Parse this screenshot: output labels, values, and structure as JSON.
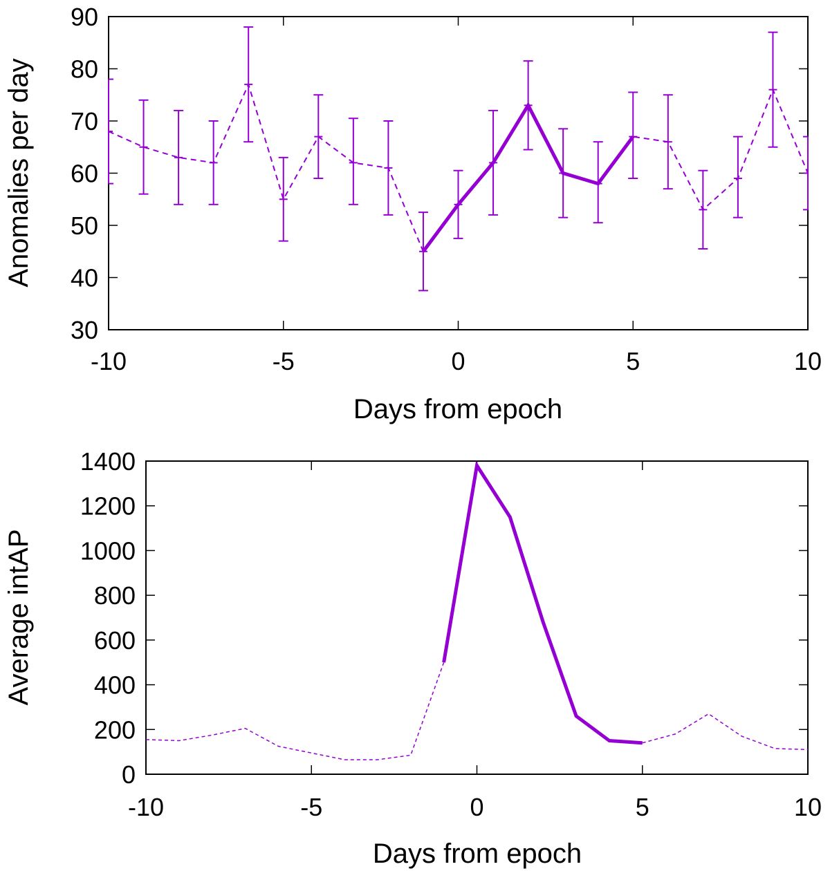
{
  "chart_data": [
    {
      "type": "line",
      "xlabel": "Days from epoch",
      "ylabel": "Anomalies per day",
      "xlim": [
        -10,
        10
      ],
      "ylim": [
        30,
        90
      ],
      "xticks": [
        -10,
        -5,
        0,
        5,
        10
      ],
      "yticks": [
        30,
        40,
        50,
        60,
        70,
        80,
        90
      ],
      "grid": false,
      "color": "#9400d3",
      "series": [
        {
          "name": "dashed",
          "style": "dashed",
          "x": [
            -10,
            -9,
            -8,
            -7,
            -6,
            -5,
            -4,
            -3,
            -2,
            -1,
            0,
            1,
            2,
            3,
            4,
            5,
            6,
            7,
            8,
            9,
            10
          ],
          "values": [
            68,
            65,
            63,
            62,
            77,
            55,
            67,
            62,
            61,
            45,
            54,
            62,
            73,
            60,
            58,
            67,
            66,
            53,
            59,
            76,
            60
          ],
          "err_low": [
            58,
            56,
            54,
            54,
            66,
            47,
            59,
            54,
            52,
            37.5,
            47.5,
            52,
            64.5,
            51.5,
            50.5,
            59,
            57,
            45.5,
            51.5,
            65,
            53
          ],
          "err_high": [
            78,
            74,
            72,
            70,
            88,
            63,
            75,
            70.5,
            70,
            52.5,
            60.5,
            72,
            81.5,
            68.5,
            66,
            75.5,
            75,
            60.5,
            67,
            87,
            67
          ]
        },
        {
          "name": "solid",
          "style": "solid",
          "x": [
            -1,
            0,
            1,
            2,
            3,
            4,
            5
          ],
          "values": [
            45,
            54,
            62,
            73,
            60,
            58,
            67
          ]
        }
      ]
    },
    {
      "type": "line",
      "xlabel": "Days from epoch",
      "ylabel": "Average intAP",
      "xlim": [
        -10,
        10
      ],
      "ylim": [
        0,
        1400
      ],
      "xticks": [
        -10,
        -5,
        0,
        5,
        10
      ],
      "yticks": [
        0,
        200,
        400,
        600,
        800,
        1000,
        1200,
        1400
      ],
      "grid": false,
      "color": "#9400d3",
      "series": [
        {
          "name": "dashed",
          "style": "dashed",
          "x": [
            -10,
            -9,
            -8,
            -7,
            -6,
            -5,
            -4,
            -3,
            -2,
            -1
          ],
          "values": [
            155,
            150,
            175,
            205,
            125,
            95,
            65,
            65,
            85,
            500
          ]
        },
        {
          "name": "solid",
          "style": "solid",
          "x": [
            -1,
            0,
            1,
            2,
            3,
            4,
            5
          ],
          "values": [
            500,
            1380,
            1150,
            680,
            260,
            150,
            140
          ]
        },
        {
          "name": "dashed-tail",
          "style": "dashed",
          "x": [
            5,
            6,
            7,
            8,
            9,
            10
          ],
          "values": [
            140,
            180,
            270,
            170,
            115,
            110
          ]
        }
      ]
    }
  ]
}
